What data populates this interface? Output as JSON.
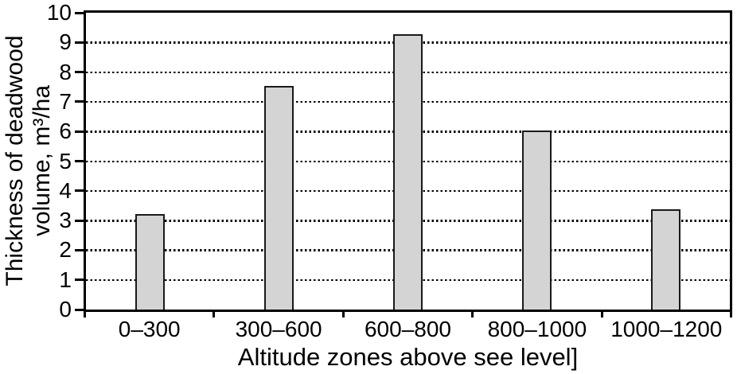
{
  "chart_data": {
    "type": "bar",
    "categories": [
      "0–300",
      "300–600",
      "600–800",
      "800–1000",
      "1000–1200"
    ],
    "values": [
      3.2,
      7.5,
      9.25,
      6.0,
      3.35
    ],
    "title": "",
    "xlabel": "Altitude zones above see level]",
    "ylabel": "Thickness of deadwood volume, m³/ha",
    "ylabel_lines": [
      "Thickness of deadwood",
      "volume, m³/ha"
    ],
    "ylim": [
      0,
      10
    ],
    "yticks": [
      0,
      1,
      2,
      3,
      4,
      5,
      6,
      7,
      8,
      9,
      10
    ],
    "gridlines": {
      "style": "dotted",
      "at": [
        1,
        2,
        3,
        4,
        5,
        6,
        7,
        8,
        9
      ]
    },
    "legend": null,
    "colors": {
      "bar_fill": "#d4d4d4",
      "bar_stroke": "#1a1a1a",
      "axis": "#000000",
      "background": "#ffffff"
    }
  }
}
